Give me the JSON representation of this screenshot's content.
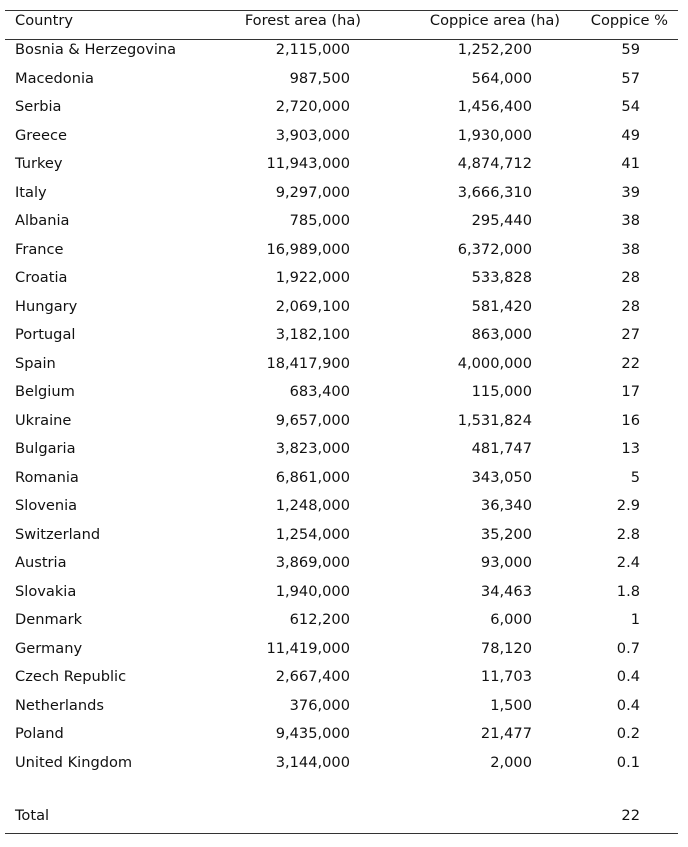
{
  "table": {
    "header": [
      "Country",
      "Forest area (ha)",
      "Coppice area (ha)",
      "Coppice %"
    ],
    "rows": [
      [
        "Bosnia & Herzegovina",
        "2,115,000",
        "1,252,200",
        "59"
      ],
      [
        "Macedonia",
        "987,500",
        "564,000",
        "57"
      ],
      [
        "Serbia",
        "2,720,000",
        "1,456,400",
        "54"
      ],
      [
        "Greece",
        "3,903,000",
        "1,930,000",
        "49"
      ],
      [
        "Turkey",
        "11,943,000",
        "4,874,712",
        "41"
      ],
      [
        "Italy",
        "9,297,000",
        "3,666,310",
        "39"
      ],
      [
        "Albania",
        "785,000",
        "295,440",
        "38"
      ],
      [
        "France",
        "16,989,000",
        "6,372,000",
        "38"
      ],
      [
        "Croatia",
        "1,922,000",
        "533,828",
        "28"
      ],
      [
        "Hungary",
        "2,069,100",
        "581,420",
        "28"
      ],
      [
        "Portugal",
        "3,182,100",
        "863,000",
        "27"
      ],
      [
        "Spain",
        "18,417,900",
        "4,000,000",
        "22"
      ],
      [
        "Belgium",
        "683,400",
        "115,000",
        "17"
      ],
      [
        "Ukraine",
        "9,657,000",
        "1,531,824",
        "16"
      ],
      [
        "Bulgaria",
        "3,823,000",
        "481,747",
        "13"
      ],
      [
        "Romania",
        "6,861,000",
        "343,050",
        "5"
      ],
      [
        "Slovenia",
        "1,248,000",
        "36,340",
        "2.9"
      ],
      [
        "Switzerland",
        "1,254,000",
        "35,200",
        "2.8"
      ],
      [
        "Austria",
        "3,869,000",
        "93,000",
        "2.4"
      ],
      [
        "Slovakia",
        "1,940,000",
        "34,463",
        "1.8"
      ],
      [
        "Denmark",
        "612,200",
        "6,000",
        "1"
      ],
      [
        "Germany",
        "11,419,000",
        "78,120",
        "0.7"
      ],
      [
        "Czech Republic",
        "2,667,400",
        "11,703",
        "0.4"
      ],
      [
        "Netherlands",
        "376,000",
        "1,500",
        "0.4"
      ],
      [
        "Poland",
        "9,435,000",
        "21,477",
        "0.2"
      ],
      [
        "United Kingdom",
        "3,144,000",
        "2,000",
        "0.1"
      ]
    ],
    "total": {
      "label": "Total",
      "coppice_pct": "22"
    }
  }
}
